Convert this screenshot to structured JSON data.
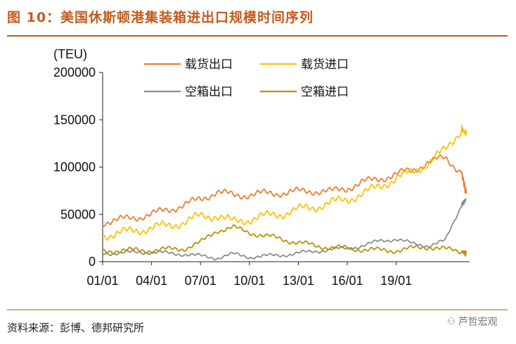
{
  "figure": {
    "title": "图 10：美国休斯顿港集装箱进出口规模时间序列",
    "source": "资料来源：彭博、德邦研究所",
    "watermark": "芦哲宏观",
    "watermark_icon": "wechat-icon"
  },
  "chart_data": {
    "type": "line",
    "title": "",
    "ylabel": "(TEU)",
    "xlabel": "",
    "ylim": [
      0,
      200000
    ],
    "yticks": [
      "0",
      "50000",
      "100000",
      "150000",
      "200000"
    ],
    "yticks_values": [
      0,
      50000,
      100000,
      150000,
      200000
    ],
    "xlim": [
      2001.0,
      2023.5
    ],
    "xticks": [
      "01/01",
      "04/01",
      "07/01",
      "10/01",
      "13/01",
      "16/01",
      "19/01"
    ],
    "xticks_values": [
      2001,
      2004,
      2007,
      2010,
      2013,
      2016,
      2019
    ],
    "series": [
      {
        "name": "载货出口",
        "color": "#ED7D31",
        "x": [
          2001,
          2002,
          2003,
          2004,
          2005,
          2006,
          2007,
          2008,
          2009,
          2010,
          2011,
          2012,
          2013,
          2014,
          2015,
          2016,
          2017,
          2018,
          2019,
          2020,
          2021,
          2022,
          2023,
          2023.3
        ],
        "values": [
          42000,
          44000,
          47000,
          50000,
          55000,
          60000,
          66000,
          74000,
          70000,
          71000,
          72000,
          73000,
          74000,
          75000,
          74000,
          78000,
          84000,
          88000,
          92000,
          97000,
          105000,
          110000,
          95000,
          72000
        ]
      },
      {
        "name": "载货进口",
        "color": "#FFC000",
        "x": [
          2001,
          2002,
          2003,
          2004,
          2005,
          2006,
          2007,
          2008,
          2009,
          2010,
          2011,
          2012,
          2013,
          2014,
          2015,
          2016,
          2017,
          2018,
          2019,
          2020,
          2021,
          2022,
          2023,
          2023.3
        ],
        "values": [
          28000,
          30000,
          33000,
          36000,
          38000,
          42000,
          48000,
          49000,
          42000,
          45000,
          48000,
          51000,
          55000,
          58000,
          62000,
          66000,
          72000,
          80000,
          88000,
          95000,
          105000,
          118000,
          140000,
          135000
        ]
      },
      {
        "name": "空箱出口",
        "color": "#8C8C8C",
        "x": [
          2001,
          2002,
          2003,
          2004,
          2005,
          2006,
          2007,
          2008,
          2009,
          2010,
          2011,
          2012,
          2013,
          2014,
          2015,
          2016,
          2017,
          2018,
          2019,
          2020,
          2021,
          2022,
          2023,
          2023.3
        ],
        "values": [
          9000,
          9000,
          10000,
          10000,
          9000,
          8000,
          6000,
          4000,
          8000,
          5000,
          6000,
          7000,
          9000,
          11000,
          13000,
          14000,
          17000,
          22000,
          24000,
          19000,
          17000,
          22000,
          60000,
          66000
        ]
      },
      {
        "name": "空箱进口",
        "color": "#BF9000",
        "x": [
          2001,
          2002,
          2003,
          2004,
          2005,
          2006,
          2007,
          2008,
          2009,
          2010,
          2011,
          2012,
          2013,
          2014,
          2015,
          2016,
          2017,
          2018,
          2019,
          2020,
          2021,
          2022,
          2023,
          2023.3
        ],
        "values": [
          11000,
          12000,
          12000,
          12000,
          13000,
          14000,
          20000,
          33000,
          36000,
          31000,
          27000,
          24000,
          20000,
          17000,
          15000,
          14000,
          13000,
          12000,
          12000,
          14000,
          16000,
          13000,
          11000,
          9000
        ]
      }
    ],
    "legend": [
      "载货出口",
      "载货进口",
      "空箱出口",
      "空箱进口"
    ],
    "legend_position": "top-center"
  }
}
